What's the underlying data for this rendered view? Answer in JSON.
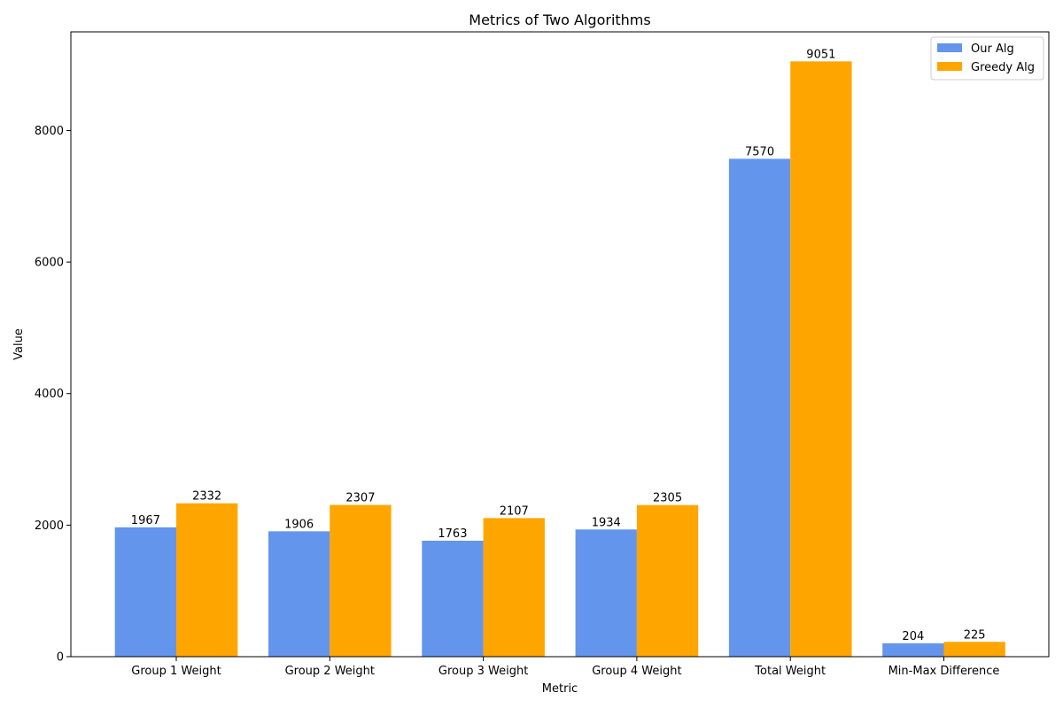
{
  "chart_data": {
    "type": "bar",
    "title": "Metrics of Two Algorithms",
    "xlabel": "Metric",
    "ylabel": "Value",
    "categories": [
      "Group 1 Weight",
      "Group 2 Weight",
      "Group 3 Weight",
      "Group 4 Weight",
      "Total Weight",
      "Min-Max Difference"
    ],
    "series": [
      {
        "name": "Our Alg",
        "color": "#6495ED",
        "values": [
          1967,
          1906,
          1763,
          1934,
          7570,
          204
        ]
      },
      {
        "name": "Greedy Alg",
        "color": "#FFA500",
        "values": [
          2332,
          2307,
          2107,
          2305,
          9051,
          225
        ]
      }
    ],
    "ylim": [
      0,
      9500
    ],
    "yticks": [
      0,
      2000,
      4000,
      6000,
      8000
    ],
    "grid": false,
    "legend_position": "top-right"
  }
}
